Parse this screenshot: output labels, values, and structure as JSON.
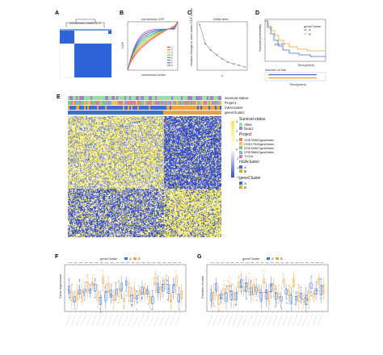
{
  "panels": {
    "A": {
      "label": "A",
      "title": "consensus matrix k=2"
    },
    "B": {
      "label": "B",
      "title": "consensus CDF",
      "xlabel": "consensus index",
      "ylabel": "CDF",
      "legend": [
        "2",
        "3",
        "4",
        "5",
        "6",
        "7",
        "8",
        "9"
      ]
    },
    "C": {
      "label": "C",
      "title": "Delta area",
      "xlabel": "k",
      "ylabel": "relative change in area under CDF curve",
      "xticks": [
        "2",
        "3",
        "4",
        "5",
        "6",
        "7",
        "8",
        "9"
      ]
    },
    "D": {
      "label": "D",
      "legend_title": "geneCluster",
      "legend_items": [
        "A",
        "B"
      ],
      "pvalue": "p<0.01",
      "ylabel": "Survival probability",
      "xlabel": "Time(years)",
      "risk_title": "Number at risk",
      "risk_xlabel": "Time(years)"
    },
    "E": {
      "label": "E",
      "annotation_rows": [
        "Survival status",
        "Project",
        "m6Acluster",
        "geneCluster"
      ],
      "legend_survival_title": "Survival status",
      "legend_survival": [
        "Alive",
        "Dead"
      ],
      "legend_project_title": "Project",
      "legend_project": [
        "GSE39582geoMatrix",
        "GSE17536geoMatrix",
        "GSE40967geoMatrix",
        "GSE38832geoMatrix",
        "TCGA"
      ],
      "legend_m6a_title": "m6Acluster",
      "legend_m6a": [
        "A",
        "B"
      ],
      "legend_gene_title": "geneCluster",
      "legend_gene": [
        "A",
        "B"
      ],
      "scale": [
        "3",
        "2",
        "1",
        "0",
        "-1",
        "-2",
        "-3"
      ]
    },
    "F": {
      "label": "F",
      "legend_title": "geneCluster",
      "legend_items": [
        "A",
        "B"
      ],
      "ylabel": "Gene expression"
    },
    "G": {
      "label": "G",
      "legend_title": "geneCluster",
      "legend_items": [
        "A",
        "B"
      ],
      "ylabel": "Fraction of cells"
    }
  },
  "colors": {
    "clusterA": "#3b6fd6",
    "clusterB": "#f0a23a",
    "heatHigh": "#f3e84a",
    "heatLow": "#3a4fc8"
  }
}
